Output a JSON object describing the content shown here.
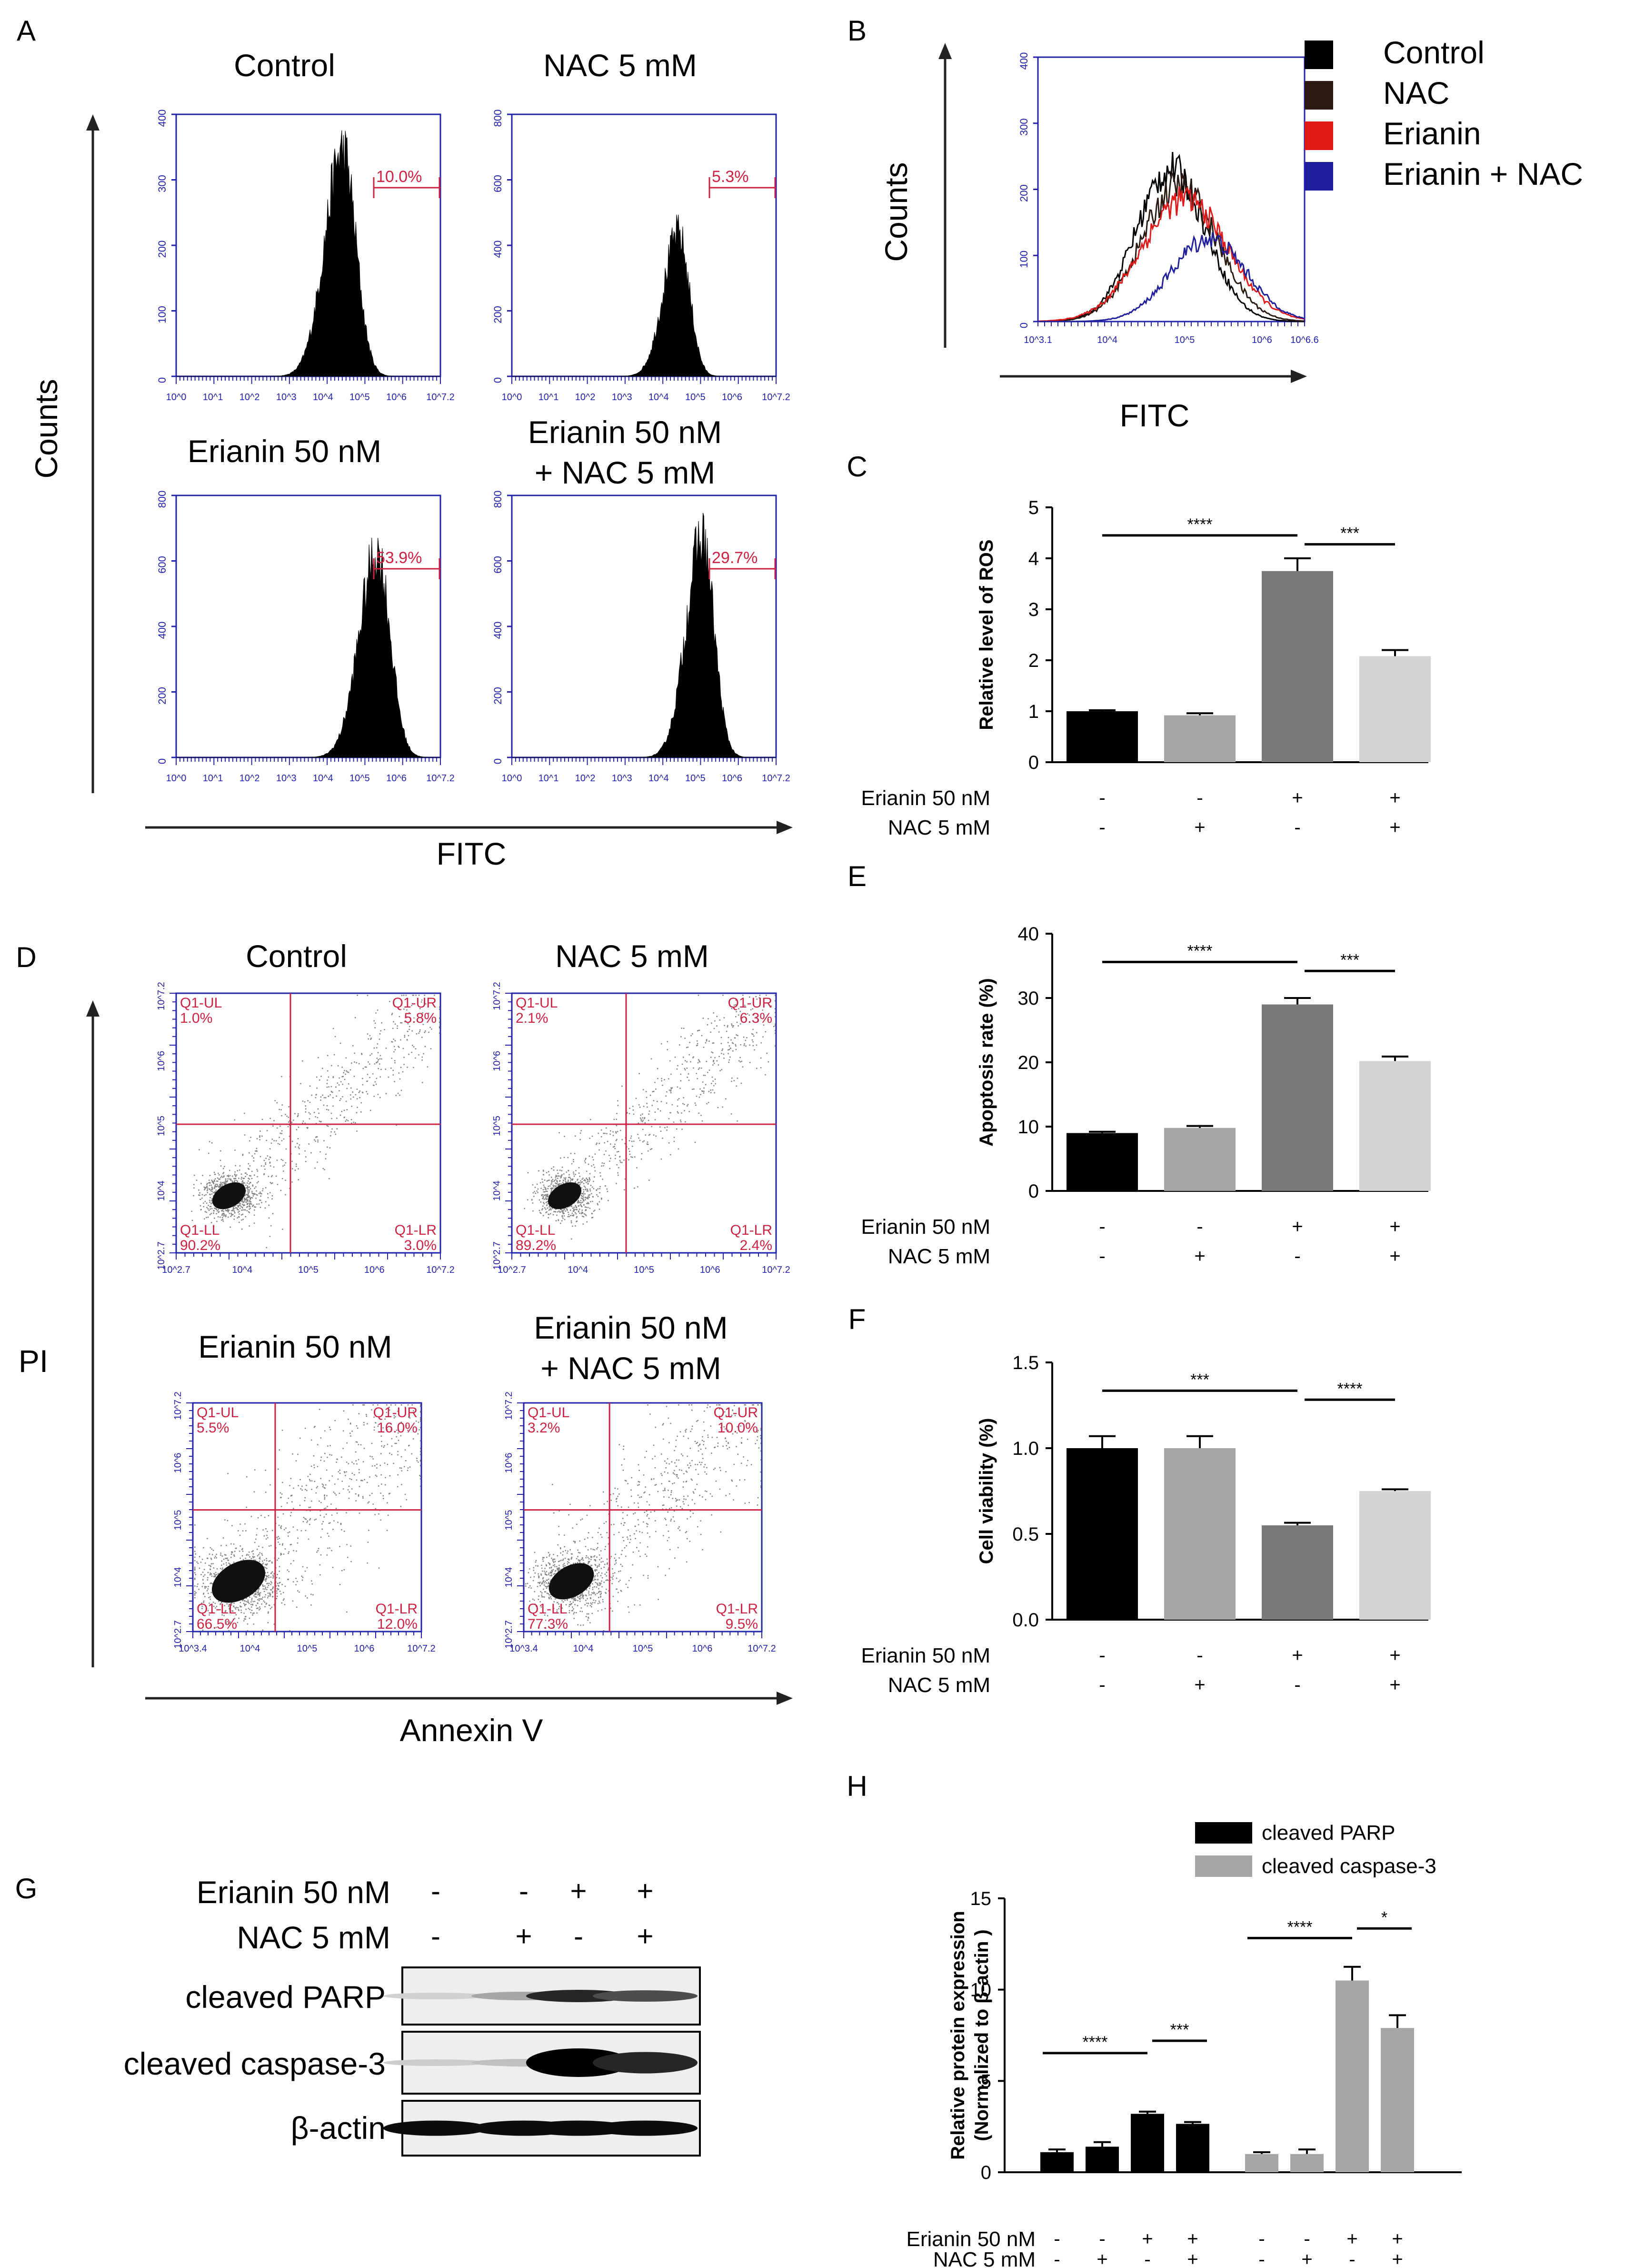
{
  "colors": {
    "black": "#000000",
    "dark_gray": "#7a7a7a",
    "mid_gray": "#a6a6a6",
    "light_gray": "#d4d4d4",
    "red": "#e01919",
    "blue": "#2a2a9a",
    "gate_red": "#cc2244",
    "plot_blue": "#2222aa"
  },
  "panelA": {
    "label": "A",
    "y_axis_label": "Counts",
    "x_axis_label": "FITC",
    "plots": [
      {
        "title_lines": [
          "Control"
        ],
        "gate": "10.0%",
        "y_ticks": [
          "0",
          "100",
          "200",
          "300",
          "400"
        ],
        "x_ticks": [
          "10^0",
          "10^1",
          "10^2",
          "10^3",
          "10^4",
          "10^5",
          "10^6",
          "10^7.2"
        ]
      },
      {
        "title_lines": [
          "NAC 5 mM"
        ],
        "gate": "5.3%",
        "y_ticks": [
          "0",
          "200",
          "400",
          "600",
          "800"
        ],
        "x_ticks": [
          "10^0",
          "10^1",
          "10^2",
          "10^3",
          "10^4",
          "10^5",
          "10^6",
          "10^7.2"
        ]
      },
      {
        "title_lines": [
          "Erianin 50 nM"
        ],
        "gate": "53.9%",
        "y_ticks": [
          "0",
          "200",
          "400",
          "600",
          "800"
        ],
        "x_ticks": [
          "10^0",
          "10^1",
          "10^2",
          "10^3",
          "10^4",
          "10^5",
          "10^6",
          "10^7.2"
        ]
      },
      {
        "title_lines": [
          "Erianin 50 nM",
          "+ NAC 5 mM"
        ],
        "gate": "29.7%",
        "y_ticks": [
          "0",
          "200",
          "400",
          "600",
          "800"
        ],
        "x_ticks": [
          "10^0",
          "10^1",
          "10^2",
          "10^3",
          "10^4",
          "10^5",
          "10^6",
          "10^7.2"
        ]
      }
    ]
  },
  "panelB": {
    "label": "B",
    "y_axis_label": "Counts",
    "x_axis_label": "FITC",
    "y_ticks": [
      "0",
      "100",
      "200",
      "300",
      "400"
    ],
    "x_ticks": [
      "10^3.1",
      "10^4",
      "10^5",
      "10^6",
      "10^6.6"
    ],
    "legend": [
      {
        "label": "Control",
        "color": "#000000"
      },
      {
        "label": "NAC",
        "color": "#2b1a12"
      },
      {
        "label": "Erianin",
        "color": "#e01919"
      },
      {
        "label": "Erianin + NAC",
        "color": "#1f1f9c"
      }
    ]
  },
  "treatments": {
    "row1_label": "Erianin 50 nM",
    "row2_label": "NAC 5 mM",
    "row1": [
      "-",
      "-",
      "+",
      "+"
    ],
    "row2": [
      "-",
      "+",
      "-",
      "+"
    ]
  },
  "chart_data": [
    {
      "panel": "C",
      "type": "bar",
      "ylabel": "Relative level of ROS",
      "ylim": [
        0,
        5
      ],
      "yticks": [
        "0",
        "1",
        "2",
        "3",
        "4",
        "5"
      ],
      "categories": [
        "Control",
        "NAC 5 mM",
        "Erianin 50 nM",
        "Erianin 50 nM + NAC 5 mM"
      ],
      "values": [
        1.0,
        0.92,
        3.75,
        2.08
      ],
      "errors": [
        0.02,
        0.04,
        0.25,
        0.12
      ],
      "significance": [
        {
          "from": 0,
          "to": 2,
          "label": "****"
        },
        {
          "from": 2,
          "to": 3,
          "label": "***"
        }
      ]
    },
    {
      "panel": "E",
      "type": "bar",
      "ylabel": "Apoptosis rate (%)",
      "ylim": [
        0,
        40
      ],
      "yticks": [
        "0",
        "10",
        "20",
        "30",
        "40"
      ],
      "categories": [
        "Control",
        "NAC 5 mM",
        "Erianin 50 nM",
        "Erianin 50 nM + NAC 5 mM"
      ],
      "values": [
        9.0,
        9.8,
        29.0,
        20.2
      ],
      "errors": [
        0.2,
        0.3,
        1.0,
        0.7
      ],
      "significance": [
        {
          "from": 0,
          "to": 2,
          "label": "****"
        },
        {
          "from": 2,
          "to": 3,
          "label": "***"
        }
      ]
    },
    {
      "panel": "F",
      "type": "bar",
      "ylabel": "Cell viability (%)",
      "ylim": [
        0,
        1.5
      ],
      "yticks": [
        "0.0",
        "0.5",
        "1.0",
        "1.5"
      ],
      "categories": [
        "Control",
        "NAC 5 mM",
        "Erianin 50 nM",
        "Erianin 50 nM + NAC 5 mM"
      ],
      "values": [
        1.0,
        1.0,
        0.55,
        0.75
      ],
      "errors": [
        0.07,
        0.07,
        0.015,
        0.01
      ],
      "significance": [
        {
          "from": 0,
          "to": 2,
          "label": "***"
        },
        {
          "from": 2,
          "to": 3,
          "label": "****"
        }
      ]
    },
    {
      "panel": "H",
      "type": "bar",
      "ylabel": "Relative protein expression",
      "ylabel2": "(Normalized to β-actin )",
      "ylim": [
        0,
        15
      ],
      "yticks": [
        "0",
        "5",
        "10",
        "15"
      ],
      "categories": [
        "Control",
        "NAC 5 mM",
        "Erianin 50 nM",
        "Erianin 50 nM + NAC 5 mM"
      ],
      "series": [
        {
          "name": "cleaved PARP",
          "values": [
            1.1,
            1.4,
            3.2,
            2.65
          ],
          "errors": [
            0.15,
            0.25,
            0.12,
            0.1
          ]
        },
        {
          "name": "cleaved caspase-3",
          "values": [
            1.0,
            1.0,
            10.5,
            7.9
          ],
          "errors": [
            0.1,
            0.25,
            0.75,
            0.7
          ]
        }
      ],
      "significance": [
        {
          "series": 0,
          "from": 0,
          "to": 2,
          "label": "****"
        },
        {
          "series": 0,
          "from": 2,
          "to": 3,
          "label": "***"
        },
        {
          "series": 1,
          "from": 0,
          "to": 2,
          "label": "****"
        },
        {
          "series": 1,
          "from": 2,
          "to": 3,
          "label": "*"
        }
      ]
    }
  ],
  "panelC": {
    "label": "C"
  },
  "panelE": {
    "label": "E"
  },
  "panelF": {
    "label": "F"
  },
  "panelH": {
    "label": "H"
  },
  "panelD": {
    "label": "D",
    "y_axis_label": "PI",
    "x_axis_label": "Annexin V",
    "plots": [
      {
        "title_lines": [
          "Control"
        ],
        "UL": "1.0%",
        "UR": "5.8%",
        "LL": "90.2%",
        "LR": "3.0%",
        "x_start": "10^2.7"
      },
      {
        "title_lines": [
          "NAC 5 mM"
        ],
        "UL": "2.1%",
        "UR": "6.3%",
        "LL": "89.2%",
        "LR": "2.4%",
        "x_start": "10^2.7"
      },
      {
        "title_lines": [
          "Erianin 50 nM"
        ],
        "UL": "5.5%",
        "UR": "16.0%",
        "LL": "66.5%",
        "LR": "12.0%",
        "x_start": "10^3.4"
      },
      {
        "title_lines": [
          "Erianin 50 nM",
          "+ NAC 5 mM"
        ],
        "UL": "3.2%",
        "UR": "10.0%",
        "LL": "77.3%",
        "LR": "9.5%",
        "x_start": "10^3.4"
      }
    ],
    "quadrant_names": [
      "Q1-UL",
      "Q1-UR",
      "Q1-LL",
      "Q1-LR"
    ],
    "y_ticks": [
      "10^2.7",
      "10^4",
      "10^5",
      "10^6",
      "10^7.2"
    ],
    "x_ticks": [
      "10^4",
      "10^5",
      "10^6",
      "10^7.2"
    ]
  },
  "panelG": {
    "label": "G",
    "bands": [
      "cleaved PARP",
      "cleaved caspase-3",
      "β-actin"
    ]
  }
}
